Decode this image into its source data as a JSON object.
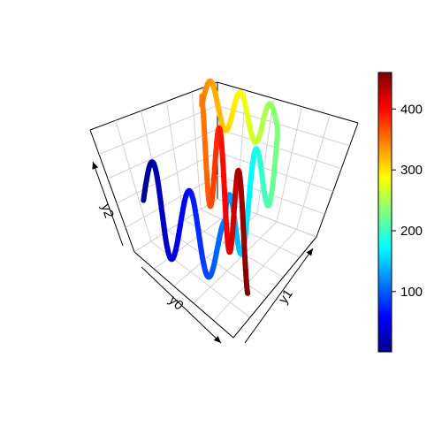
{
  "chart_data": {
    "type": "line",
    "projection": "3d-perspective",
    "axes": [
      {
        "name": "y0",
        "label": "y0"
      },
      {
        "name": "y1",
        "label": "y1"
      },
      {
        "name": "y2",
        "label": "y2"
      }
    ],
    "grid": true,
    "color_scale": {
      "colormap": "jet",
      "range": [
        1,
        460
      ],
      "ticks": [
        100,
        200,
        300,
        400
      ],
      "tick_labels": [
        "100",
        "200",
        "300",
        "400"
      ],
      "colors": [
        "#00008F",
        "#0000FF",
        "#0080FF",
        "#00FFFF",
        "#80FF80",
        "#FFFF00",
        "#FF8000",
        "#FF0000",
        "#800000"
      ],
      "placement": "right"
    },
    "path": {
      "count": 460,
      "y0_range": [
        0,
        1
      ],
      "y1_range": [
        0,
        1
      ],
      "y2_range": [
        0,
        1
      ]
    }
  }
}
